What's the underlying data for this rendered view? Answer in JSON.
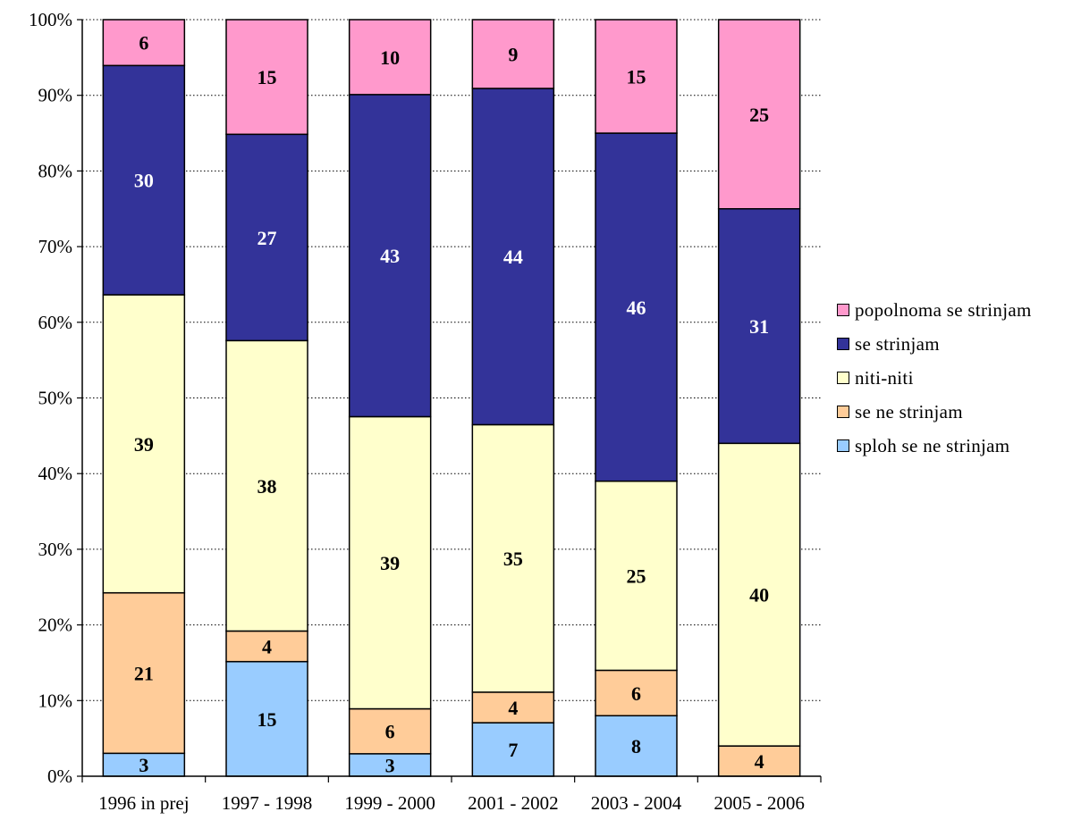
{
  "chart_data": {
    "type": "bar",
    "stacked": true,
    "normalized_percent": true,
    "categories": [
      "1996 in prej",
      "1997 - 1998",
      "1999 - 2000",
      "2001 - 2002",
      "2003 - 2004",
      "2005 - 2006"
    ],
    "y_ticks": [
      "0%",
      "10%",
      "20%",
      "30%",
      "40%",
      "50%",
      "60%",
      "70%",
      "80%",
      "90%",
      "100%"
    ],
    "ylim": [
      0,
      100
    ],
    "grid": "horizontal dotted",
    "legend_position": "right",
    "series": [
      {
        "name": "sploh se ne strinjam",
        "color": "#99ccff",
        "label_color": "#000000",
        "values": [
          3,
          15,
          3,
          7,
          8,
          0
        ]
      },
      {
        "name": "se ne strinjam",
        "color": "#ffcc99",
        "label_color": "#000000",
        "values": [
          21,
          4,
          6,
          4,
          6,
          4
        ]
      },
      {
        "name": "niti-niti",
        "color": "#ffffcc",
        "label_color": "#000000",
        "values": [
          39,
          38,
          39,
          35,
          25,
          40
        ]
      },
      {
        "name": "se strinjam",
        "color": "#333399",
        "label_color": "#ffffff",
        "values": [
          30,
          27,
          43,
          44,
          46,
          31
        ]
      },
      {
        "name": "popolnoma se strinjam",
        "color": "#ff99cc",
        "label_color": "#000000",
        "values": [
          6,
          15,
          10,
          9,
          15,
          25
        ]
      }
    ],
    "legend_order": [
      "popolnoma se strinjam",
      "se strinjam",
      "niti-niti",
      "se ne strinjam",
      "sploh se ne strinjam"
    ]
  }
}
